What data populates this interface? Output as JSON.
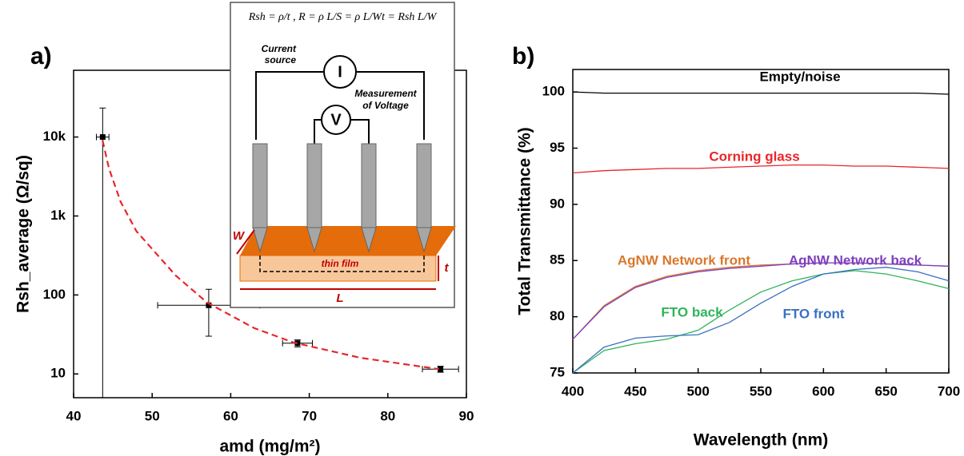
{
  "chart_data": [
    {
      "type": "scatter",
      "panel_label": "a)",
      "x_label": "amd (mg/m²)",
      "y_label": "Rsh_average (Ω/sq)",
      "xlim": [
        40,
        90
      ],
      "xticks": [
        40,
        50,
        60,
        70,
        80,
        90
      ],
      "ylim": [
        5,
        70000
      ],
      "log_y": true,
      "yticks": [
        10,
        100,
        {
          "value": 1000,
          "label": "1k"
        },
        {
          "value": 10000,
          "label": "10k"
        }
      ],
      "series": [
        {
          "mode": "markers",
          "color": "#000000",
          "x": [
            43.7,
            57.2,
            68.5,
            86.7
          ],
          "values": [
            10000,
            74,
            24.5,
            11.5
          ],
          "x_error": [
            0.8,
            6.5,
            1.9,
            2.3
          ],
          "y_error": [
            13300,
            44,
            2.5,
            1
          ]
        },
        {
          "mode": "dashed-line",
          "color": "#e8262a",
          "x": [
            43.7,
            44.5,
            46,
            48,
            53,
            57,
            63,
            68,
            76.5,
            86.5
          ],
          "values": [
            9000,
            4000,
            1500,
            640,
            176,
            80,
            38,
            25,
            16,
            11.5
          ]
        }
      ],
      "inset": {
        "formula": "Rsh = ρ/t ,  R = ρ L/S = ρ L/Wt = Rsh L/W",
        "source_symbol": "I",
        "meter_symbol": "V",
        "source_label": [
          "Current",
          "source"
        ],
        "meter_label": [
          "Measurement",
          "of Voltage"
        ],
        "width_label": "W",
        "film_label": "thin film",
        "thickness_label": "t",
        "length_label": "L"
      }
    },
    {
      "type": "line",
      "panel_label": "b)",
      "x_label": "Wavelength (nm)",
      "y_label": "Total Transmittance (%)",
      "xlim": [
        400,
        700
      ],
      "xticks": [
        400,
        450,
        500,
        550,
        600,
        650,
        700
      ],
      "ylim": [
        75,
        102
      ],
      "yticks": [
        75,
        80,
        85,
        90,
        95,
        100
      ],
      "x": [
        400,
        425,
        450,
        475,
        500,
        525,
        550,
        575,
        600,
        625,
        650,
        675,
        700
      ],
      "series": [
        {
          "name": "Empty/noise",
          "color": "#000000",
          "values": [
            100,
            99.9,
            99.9,
            99.9,
            99.9,
            99.9,
            99.9,
            99.9,
            99.9,
            99.9,
            99.9,
            99.9,
            99.8
          ]
        },
        {
          "name": "Corning glass",
          "color": "#e8262a",
          "values": [
            92.8,
            93.0,
            93.1,
            93.2,
            93.2,
            93.3,
            93.4,
            93.5,
            93.5,
            93.4,
            93.4,
            93.3,
            93.2
          ]
        },
        {
          "name": "AgNW Network front",
          "color": "#d9772b",
          "values": [
            78.0,
            81.0,
            82.7,
            83.6,
            84.1,
            84.4,
            84.6,
            84.7,
            84.8,
            84.8,
            84.7,
            84.6,
            84.5
          ]
        },
        {
          "name": "AgNW Network back",
          "color": "#7e3fbf",
          "values": [
            78.0,
            80.9,
            82.6,
            83.5,
            84.0,
            84.3,
            84.5,
            84.7,
            84.8,
            84.8,
            84.7,
            84.6,
            84.5
          ]
        },
        {
          "name": "FTO back",
          "color": "#2fb35a",
          "values": [
            75.0,
            77.0,
            77.6,
            78.0,
            78.8,
            80.6,
            82.2,
            83.2,
            83.8,
            84.1,
            83.8,
            83.2,
            82.5
          ]
        },
        {
          "name": "FTO front",
          "color": "#3a6fc4",
          "values": [
            75.0,
            77.3,
            78.1,
            78.3,
            78.4,
            79.5,
            81.2,
            82.7,
            83.8,
            84.2,
            84.4,
            84.0,
            83.2
          ]
        }
      ]
    }
  ]
}
